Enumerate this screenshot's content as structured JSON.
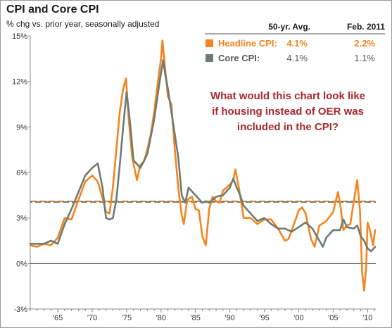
{
  "chart_data": {
    "type": "line",
    "title": "CPI and Core CPI",
    "subtitle": "% chg vs. prior year, seasonally adjusted",
    "ylim": [
      -3,
      15
    ],
    "y_ticks": [
      "-3%",
      "0%",
      "3%",
      "6%",
      "9%",
      "12%",
      "15%"
    ],
    "y_tick_values": [
      -3,
      0,
      3,
      6,
      9,
      12,
      15
    ],
    "xlim": [
      1961,
      2011.2
    ],
    "x_ticks": [
      "'65",
      "'70",
      "'75",
      "'80",
      "'85",
      "'90",
      "'95",
      "'00",
      "'05",
      "'10"
    ],
    "x_tick_values": [
      1965,
      1970,
      1975,
      1980,
      1985,
      1990,
      1995,
      2000,
      2005,
      2010
    ],
    "legend": {
      "header_avg": "50-yr. Avg.",
      "header_latest": "Feb. 2011",
      "headline_label": "Headline CPI:",
      "headline_avg": "4.1%",
      "headline_latest": "2.2%",
      "core_label": "Core CPI:",
      "core_avg": "4.1%",
      "core_latest": "1.1%"
    },
    "annotation": [
      "What would this chart look like",
      "if housing instead of OER was",
      "included in the CPI?"
    ],
    "colors": {
      "headline": "#f5841f",
      "core": "#6e7b73",
      "zero_line": "#555555",
      "annotation": "#a8282c"
    },
    "averages": {
      "headline": 4.1,
      "core": 4.05
    },
    "series": [
      {
        "name": "Headline CPI",
        "x": [
          1961,
          1962,
          1963,
          1964,
          1965,
          1966,
          1967,
          1968,
          1969,
          1970,
          1970.8,
          1971.5,
          1972,
          1972.5,
          1973,
          1973.5,
          1974,
          1974.5,
          1974.9,
          1975.3,
          1975.8,
          1976.5,
          1977,
          1977.5,
          1978,
          1978.5,
          1979,
          1979.5,
          1980,
          1980.2,
          1980.6,
          1981,
          1981.5,
          1982,
          1982.5,
          1983,
          1983.3,
          1983.8,
          1984.5,
          1985,
          1985.5,
          1986,
          1986.5,
          1987,
          1987.5,
          1988,
          1988.5,
          1989,
          1990,
          1990.5,
          1990.8,
          1991.3,
          1992,
          1993,
          1994,
          1995,
          1996,
          1997,
          1998,
          1998.5,
          1999,
          2000,
          2000.5,
          2001,
          2001.8,
          2002.3,
          2003,
          2004,
          2005,
          2005.7,
          2006,
          2006.5,
          2007,
          2007.5,
          2008,
          2008.5,
          2008.9,
          2009.2,
          2009.5,
          2009.8,
          2010,
          2010.3,
          2010.8,
          2011.1
        ],
        "y": [
          1.2,
          1.1,
          1.3,
          1.2,
          1.7,
          3.0,
          2.9,
          4.2,
          5.4,
          5.8,
          5.4,
          4.3,
          3.4,
          3.3,
          5.0,
          7.5,
          10.0,
          11.5,
          12.2,
          9.5,
          7.0,
          5.5,
          6.5,
          6.7,
          7.5,
          8.5,
          10.0,
          11.8,
          13.5,
          14.7,
          12.8,
          11.0,
          10.5,
          7.5,
          5.0,
          3.2,
          2.6,
          4.2,
          4.4,
          3.6,
          3.5,
          1.8,
          1.2,
          3.6,
          4.4,
          4.1,
          4.0,
          4.8,
          5.2,
          5.5,
          6.2,
          5.0,
          3.0,
          3.0,
          2.6,
          2.9,
          2.9,
          2.3,
          1.5,
          1.6,
          2.2,
          3.5,
          3.7,
          3.3,
          1.6,
          1.1,
          2.5,
          2.8,
          3.4,
          4.7,
          4.0,
          2.2,
          2.5,
          2.6,
          4.1,
          5.5,
          3.5,
          -0.5,
          -1.8,
          -0.2,
          2.7,
          2.3,
          1.2,
          2.2
        ]
      },
      {
        "name": "Core CPI",
        "x": [
          1961,
          1962,
          1963,
          1964,
          1965,
          1966,
          1967,
          1968,
          1969,
          1970,
          1970.8,
          1971.5,
          1972,
          1972.5,
          1973,
          1973.5,
          1974,
          1974.5,
          1975,
          1975.5,
          1976,
          1977,
          1978,
          1979,
          1979.8,
          1980.3,
          1980.6,
          1981,
          1981.5,
          1982,
          1982.5,
          1983,
          1983.5,
          1984,
          1985,
          1986,
          1986.5,
          1987,
          1988,
          1989,
          1990,
          1990.5,
          1991,
          1991.5,
          1992,
          1993,
          1994,
          1995,
          1996,
          1997,
          1998,
          1999,
          2000,
          2001,
          2002,
          2003,
          2003.5,
          2004,
          2005,
          2006,
          2006.5,
          2007,
          2008,
          2008.5,
          2009,
          2009.5,
          2010,
          2010.5,
          2011.1
        ],
        "y": [
          1.3,
          1.3,
          1.3,
          1.5,
          1.3,
          2.6,
          3.6,
          4.7,
          5.8,
          6.3,
          6.6,
          5.0,
          3.0,
          2.9,
          3.0,
          4.2,
          6.5,
          9.0,
          11.3,
          9.3,
          6.8,
          6.3,
          7.2,
          9.5,
          12.0,
          13.4,
          12.5,
          11.5,
          10.0,
          8.5,
          7.0,
          4.5,
          4.0,
          5.0,
          4.5,
          4.0,
          4.1,
          4.0,
          4.4,
          4.5,
          5.0,
          5.6,
          5.0,
          4.5,
          3.8,
          3.3,
          2.8,
          3.0,
          2.6,
          2.3,
          2.3,
          2.1,
          2.4,
          2.7,
          2.3,
          1.5,
          1.1,
          1.7,
          2.2,
          2.2,
          2.9,
          2.4,
          2.3,
          2.5,
          1.8,
          1.5,
          1.0,
          0.8,
          1.1
        ]
      }
    ]
  }
}
